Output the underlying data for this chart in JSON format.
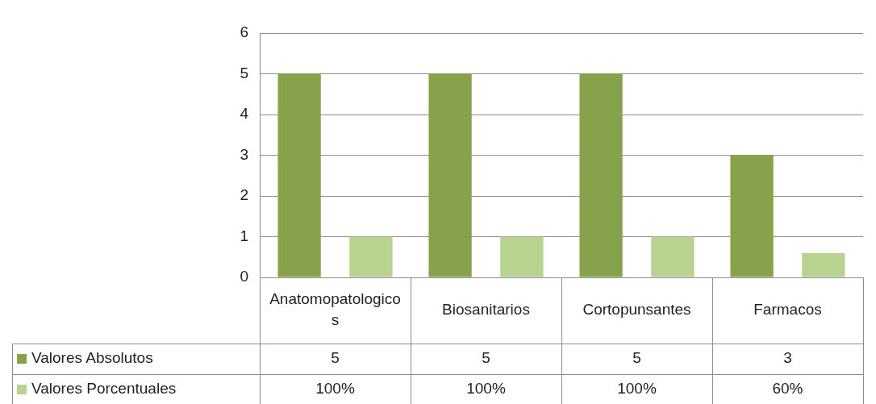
{
  "chart_data": {
    "type": "bar",
    "categories": [
      "Anatomopatologicos",
      "Biosanitarios",
      "Cortopunsantes",
      "Farmacos"
    ],
    "series": [
      {
        "name": "Valores Absolutos",
        "color": "#86a34b",
        "values": [
          5,
          5,
          5,
          3
        ],
        "value_labels": [
          "5",
          "5",
          "5",
          "3"
        ]
      },
      {
        "name": "Valores Porcentuales",
        "color": "#b8d38f",
        "values": [
          1,
          1,
          1,
          0.6
        ],
        "value_labels": [
          "100%",
          "100%",
          "100%",
          "60%"
        ]
      }
    ],
    "ylim": [
      0,
      6
    ],
    "yticks": [
      0,
      1,
      2,
      3,
      4,
      5,
      6
    ],
    "grid": "y",
    "legend": "bottom left"
  }
}
